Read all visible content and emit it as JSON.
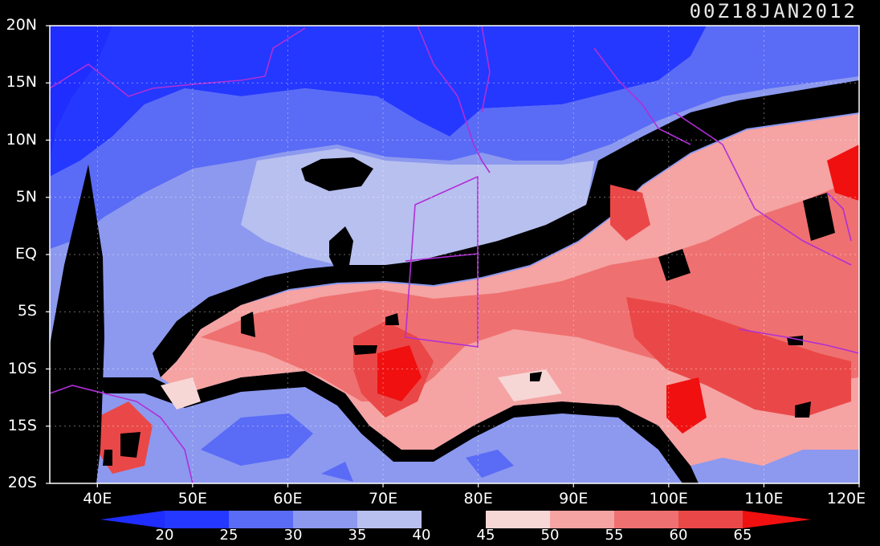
{
  "title": "00Z18JAN2012",
  "map": {
    "lat_labels": [
      "20N",
      "15N",
      "10N",
      "5N",
      "EQ",
      "5S",
      "10S",
      "15S",
      "20S"
    ],
    "lon_labels": [
      "40E",
      "50E",
      "60E",
      "70E",
      "80E",
      "90E",
      "100E",
      "110E",
      "120E"
    ],
    "lat_range": [
      -20,
      20
    ],
    "lon_range": [
      35,
      120
    ],
    "grid": true,
    "gridline_style": "dotted"
  },
  "colorbar": {
    "levels": [
      "20",
      "25",
      "30",
      "35",
      "40",
      "45",
      "50",
      "55",
      "60",
      "65"
    ],
    "colors": {
      "below_20": "#1f2dff",
      "c20_25": "#2438ff",
      "c25_30": "#5a6bf6",
      "c30_35": "#8c99ef",
      "c35_40": "#b8c0ef",
      "c40_45": "#000000",
      "c45_50": "#f7d6d6",
      "c50_55": "#f5a3a3",
      "c55_60": "#ef7070",
      "c60_65": "#ea4848",
      "above_65": "#f01010"
    },
    "extension": "triangles both ends"
  },
  "overlays": {
    "coastline_color": "#b02fd6",
    "box_color": "#b02fd6"
  }
}
